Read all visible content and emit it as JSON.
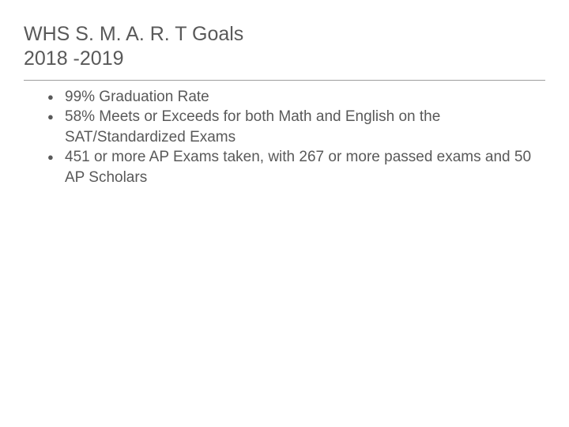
{
  "title": {
    "line1": "WHS S. M. A. R. T Goals",
    "line2": "2018 -2019"
  },
  "goals": [
    "99% Graduation Rate",
    "58% Meets or Exceeds for both Math and English on the SAT/Standardized Exams",
    " 451 or more AP Exams taken, with 267 or more passed exams and 50 AP Scholars"
  ],
  "colors": {
    "text": "#595959",
    "divider": "#9e9e9e",
    "background": "#ffffff"
  },
  "typography": {
    "title_fontsize": 25,
    "body_fontsize": 19,
    "font_family": "Arial"
  }
}
